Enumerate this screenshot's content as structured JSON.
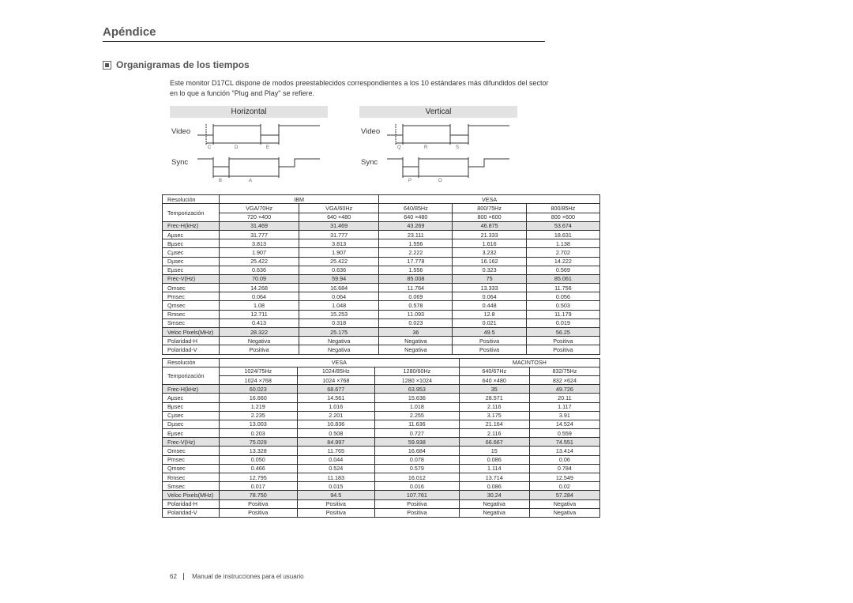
{
  "page": {
    "title": "Apéndice",
    "subtitle": "Organigramas de los tiempos",
    "intro": "Este monitor D17CL dispone de modos preestablecidos correspondientes a los 10 estándares más difundidos del sector en lo que a función \"Plug and Play\" se refiere.",
    "number": "62",
    "footer": "Manual de instrucciones para el usuario"
  },
  "diagrams": {
    "horizontal": {
      "title": "Horizontal",
      "video": "Video",
      "sync": "Sync",
      "letters_top": [
        "C",
        "D",
        "E"
      ],
      "letters_bot": [
        "B",
        "A"
      ]
    },
    "vertical": {
      "title": "Vertical",
      "video": "Video",
      "sync": "Sync",
      "letters_top": [
        "Q",
        "R",
        "S"
      ],
      "letters_bot": [
        "P",
        "O"
      ]
    },
    "colors": {
      "line": "#333333",
      "bg": "#ffffff"
    },
    "stroke_width": 1
  },
  "table1": {
    "header_groups": [
      "IBM",
      "VESA"
    ],
    "group_spans": [
      2,
      3
    ],
    "resolution_label": "Resolución",
    "timing_label": "Temporización",
    "modes": [
      "VGA/70Hz",
      "VGA/60Hz",
      "640/85Hz",
      "800/75Hz",
      "800/85Hz"
    ],
    "resolutions": [
      "720 ×400",
      "640 ×480",
      "640 ×480",
      "800 ×600",
      "800 ×600"
    ],
    "rows": [
      {
        "label": "Frec-H(kHz)",
        "shade": true,
        "v": [
          "31.469",
          "31.469",
          "43.269",
          "46.875",
          "53.674"
        ]
      },
      {
        "label": "Aµsec",
        "v": [
          "31.777",
          "31.777",
          "23.111",
          "21.333",
          "18.631"
        ]
      },
      {
        "label": "Bµsec",
        "v": [
          "3.813",
          "3.813",
          "1.556",
          "1.616",
          "1.138"
        ]
      },
      {
        "label": "Cµsec",
        "v": [
          "1.907",
          "1.907",
          "2.222",
          "3.232",
          "2.702"
        ]
      },
      {
        "label": "Dµsec",
        "v": [
          "25.422",
          "25.422",
          "17.778",
          "16.162",
          "14.222"
        ]
      },
      {
        "label": "Eµsec",
        "v": [
          "0.636",
          "0.636",
          "1.556",
          "0.323",
          "0.569"
        ]
      },
      {
        "label": "Frec-V(Hz)",
        "shade": true,
        "v": [
          "70.09",
          "59.94",
          "85.008",
          "75",
          "85.061"
        ]
      },
      {
        "label": "Omsec",
        "v": [
          "14.268",
          "16.684",
          "11.764",
          "13.333",
          "11.756"
        ]
      },
      {
        "label": "Pmsec",
        "v": [
          "0.064",
          "0.064",
          "0.069",
          "0.064",
          "0.056"
        ]
      },
      {
        "label": "Qmsec",
        "v": [
          "1.08",
          "1.048",
          "0.578",
          "0.448",
          "0.503"
        ]
      },
      {
        "label": "Rmsec",
        "v": [
          "12.711",
          "15.253",
          "11.093",
          "12.8",
          "11.179"
        ]
      },
      {
        "label": "Smsec",
        "v": [
          "0.413",
          "0.318",
          "0.023",
          "0.021",
          "0.019"
        ]
      },
      {
        "label": "Veloc Pixels(MHz)",
        "shade": true,
        "v": [
          "28.322",
          "25.175",
          "36",
          "49.5",
          "56.25"
        ]
      },
      {
        "label": "Polaridad-H",
        "v": [
          "Negativa",
          "Negativa",
          "Negativa",
          "Positiva",
          "Positiva"
        ]
      },
      {
        "label": "Polaridad-V",
        "v": [
          "Positiva",
          "Negativa",
          "Negativa",
          "Positiva",
          "Positiva"
        ]
      }
    ]
  },
  "table2": {
    "header_groups": [
      "VESA",
      "MACINTOSH"
    ],
    "group_spans": [
      3,
      2
    ],
    "resolution_label": "Resolución",
    "timing_label": "Temporización",
    "modes": [
      "1024/75Hz",
      "1024/85Hz",
      "1280/60Hz",
      "640/67Hz",
      "832/75Hz"
    ],
    "resolutions": [
      "1024 ×768",
      "1024 ×768",
      "1280 ×1024",
      "640 ×480",
      "832 ×624"
    ],
    "rows": [
      {
        "label": "Frec-H(kHz)",
        "shade": true,
        "v": [
          "60.023",
          "68.677",
          "63.953",
          "35",
          "49.726"
        ]
      },
      {
        "label": "Aµsec",
        "v": [
          "16.660",
          "14.561",
          "15.636",
          "28.571",
          "20.11"
        ]
      },
      {
        "label": "Bµsec",
        "v": [
          "1.219",
          "1.016",
          "1.018",
          "2.116",
          "1.117"
        ]
      },
      {
        "label": "Cµsec",
        "v": [
          "2.235",
          "2.201",
          "2.255",
          "3.175",
          "3.91"
        ]
      },
      {
        "label": "Dµsec",
        "v": [
          "13.003",
          "10.836",
          "11.636",
          "21.164",
          "14.524"
        ]
      },
      {
        "label": "Eµsec",
        "v": [
          "0.203",
          "0.508",
          "0.727",
          "2.116",
          "0.559"
        ]
      },
      {
        "label": "Frec-V(Hz)",
        "shade": true,
        "v": [
          "75.029",
          "84.997",
          "59.938",
          "66.667",
          "74.551"
        ]
      },
      {
        "label": "Omsec",
        "v": [
          "13.328",
          "11.765",
          "16.684",
          "15",
          "13.414"
        ]
      },
      {
        "label": "Pmsec",
        "v": [
          "0.050",
          "0.044",
          "0.078",
          "0.086",
          "0.06"
        ]
      },
      {
        "label": "Qmsec",
        "v": [
          "0.466",
          "0.524",
          "0.579",
          "1.114",
          "0.784"
        ]
      },
      {
        "label": "Rmsec",
        "v": [
          "12.795",
          "11.183",
          "16.012",
          "13.714",
          "12.549"
        ]
      },
      {
        "label": "Smsec",
        "v": [
          "0.017",
          "0.015",
          "0.016",
          "0.086",
          "0.02"
        ]
      },
      {
        "label": "Veloc Pixels(MHz)",
        "shade": true,
        "v": [
          "78.750",
          "94.5",
          "107.761",
          "30.24",
          "57.284"
        ]
      },
      {
        "label": "Polaridad-H",
        "v": [
          "Positiva",
          "Positiva",
          "Positiva",
          "Negativa",
          "Negativa"
        ]
      },
      {
        "label": "Polaridad-V",
        "v": [
          "Positiva",
          "Positiva",
          "Positiva",
          "Negativa",
          "Negativa"
        ]
      }
    ]
  },
  "style": {
    "shade_bg": "#e2e2e2",
    "border_color": "#333333",
    "text_color": "#2a2a2a",
    "title_color": "#555555"
  }
}
